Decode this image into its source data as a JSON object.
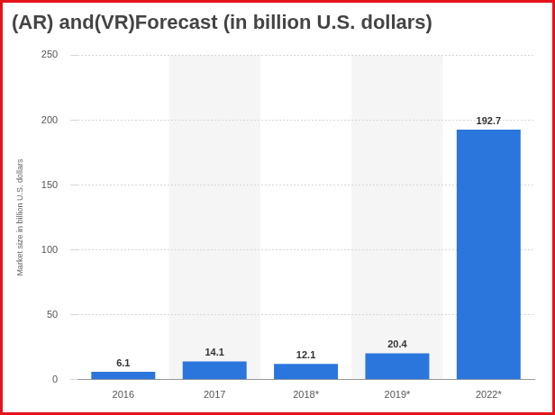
{
  "chart_data": {
    "type": "bar",
    "title": "(AR) and(VR)Forecast (in billion U.S. dollars)",
    "ylabel": "Market size in billion U.S. dollars",
    "categories": [
      "2016",
      "2017",
      "2018*",
      "2019*",
      "2022*"
    ],
    "values": [
      6.1,
      14.1,
      12.1,
      20.4,
      192.7
    ],
    "color": "#2a76dd",
    "ylim": [
      0,
      250
    ],
    "yticks": [
      0,
      50,
      100,
      150,
      200,
      250
    ],
    "grid": true,
    "data_labels": true
  }
}
